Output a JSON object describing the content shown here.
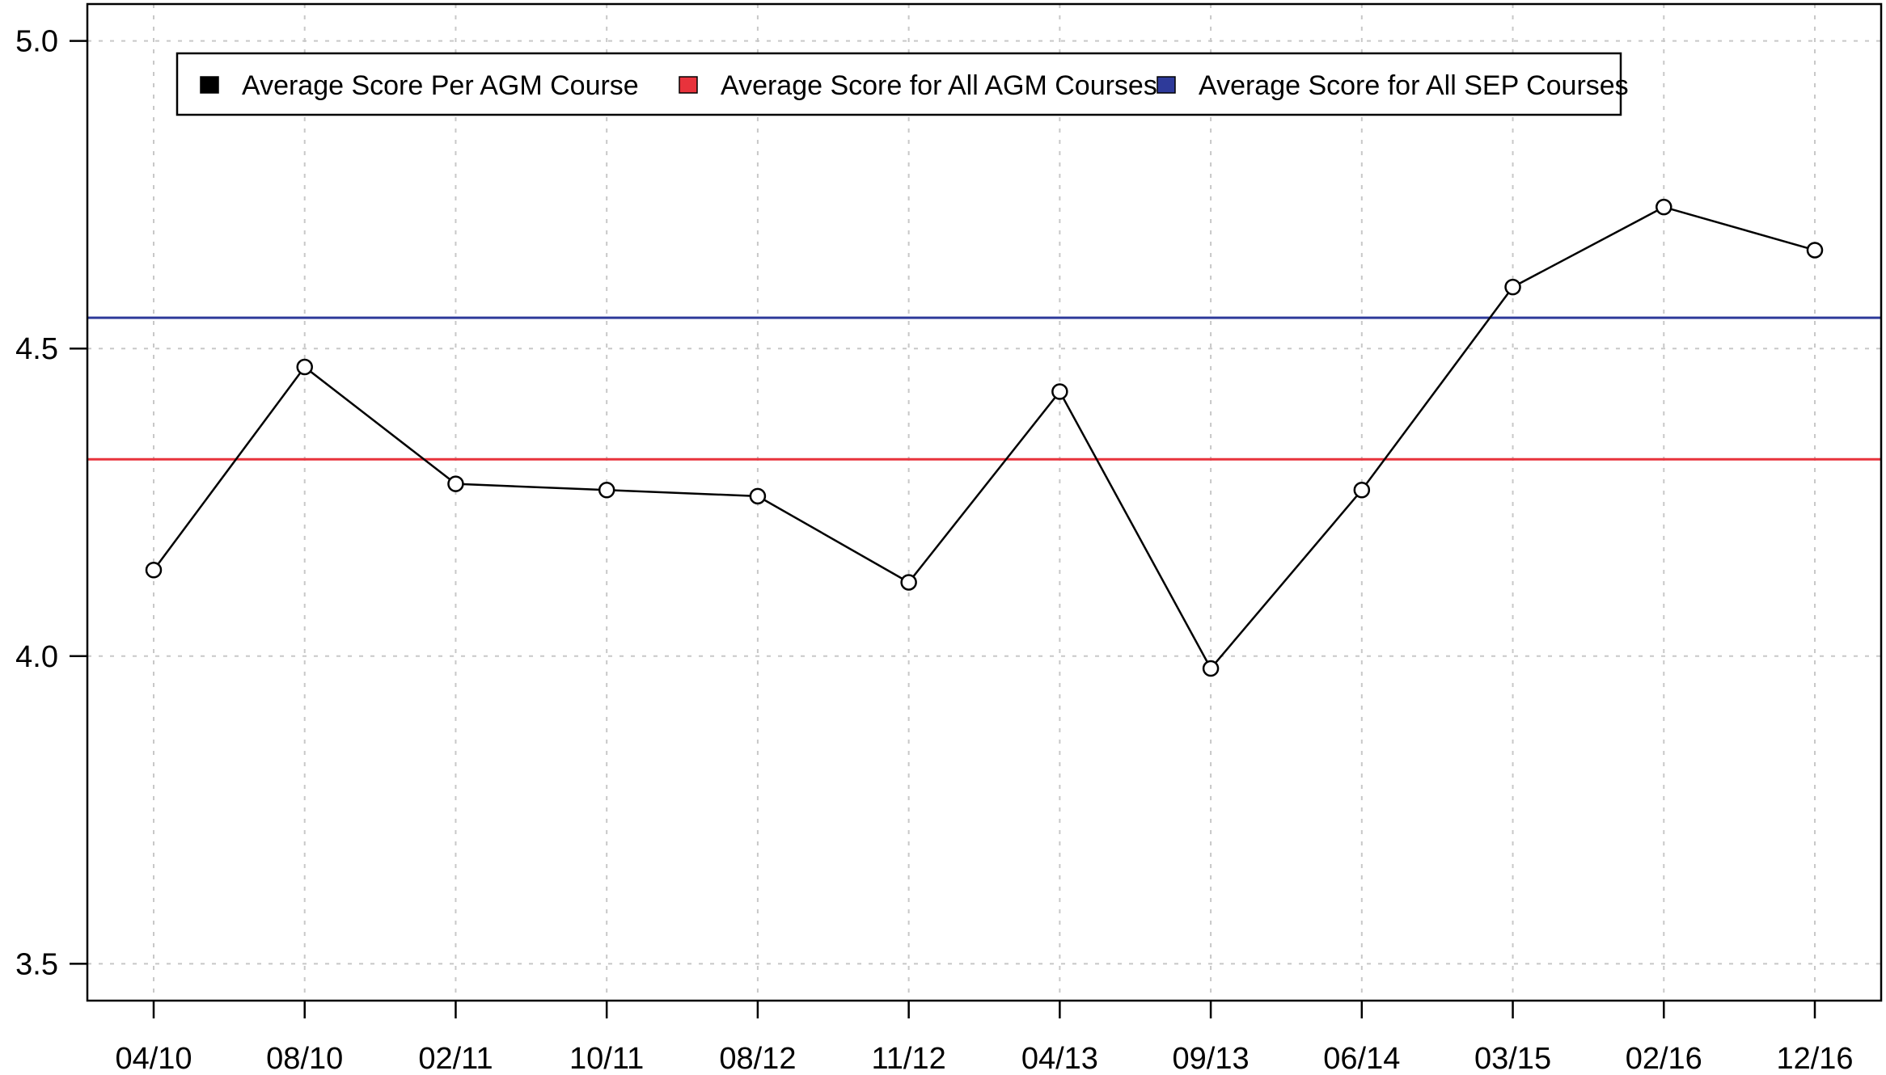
{
  "chart_data": {
    "type": "line",
    "title": "",
    "xlabel": "",
    "ylabel": "",
    "categories": [
      "04/10",
      "08/10",
      "02/11",
      "10/11",
      "08/12",
      "11/12",
      "04/13",
      "09/13",
      "06/14",
      "03/15",
      "02/16",
      "12/16"
    ],
    "series": [
      {
        "name": "Average Score Per AGM Course",
        "color": "#000000",
        "marker": "open-circle",
        "values": [
          4.14,
          4.47,
          4.28,
          4.27,
          4.26,
          4.12,
          4.43,
          3.98,
          4.27,
          4.6,
          4.73,
          4.66
        ]
      }
    ],
    "reference_lines": [
      {
        "name": "Average Score for All AGM Courses",
        "value": 4.32,
        "color": "#e8333c"
      },
      {
        "name": "Average Score for All SEP Courses",
        "value": 4.55,
        "color": "#2e3a9a"
      }
    ],
    "ylim": [
      3.44,
      5.06
    ],
    "yticks": [
      "3.5",
      "4.0",
      "4.5",
      "5.0"
    ],
    "grid": true,
    "legend": {
      "placement": "top",
      "entries": [
        {
          "label": "Average Score Per AGM Course",
          "color": "#000000"
        },
        {
          "label": "Average Score for All AGM Courses",
          "color": "#e8333c"
        },
        {
          "label": "Average Score for All SEP Courses",
          "color": "#2e3a9a"
        }
      ]
    }
  }
}
